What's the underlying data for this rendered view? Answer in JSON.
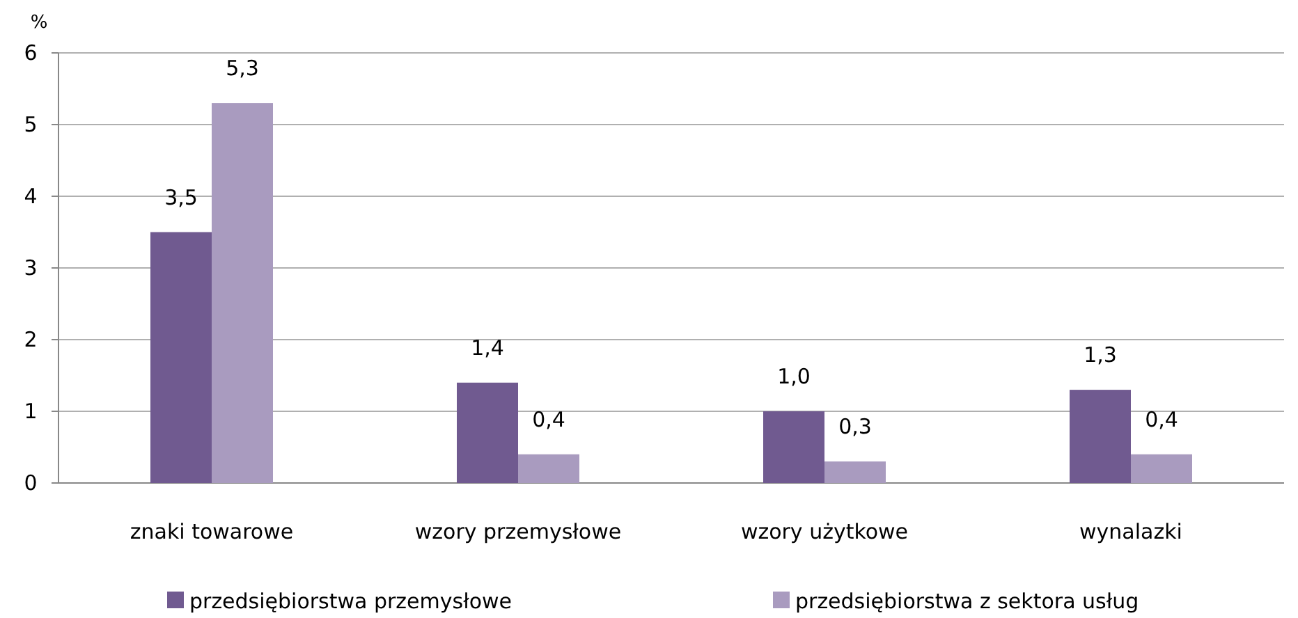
{
  "chart_data": {
    "type": "bar",
    "ylabel": "%",
    "categories": [
      "znaki towarowe",
      "wzory przemysłowe",
      "wzory użytkowe",
      "wynalazki"
    ],
    "series": [
      {
        "name": "przedsiębiorstwa przemysłowe",
        "color": "#705a90",
        "values": [
          3.5,
          1.4,
          1.0,
          1.3
        ],
        "value_labels": [
          "3,5",
          "1,4",
          "1,0",
          "1,3"
        ]
      },
      {
        "name": "przedsiębiorstwa z sektora usług",
        "color": "#a99bbf",
        "values": [
          5.3,
          0.4,
          0.3,
          0.4
        ],
        "value_labels": [
          "5,3",
          "0,4",
          "0,3",
          "0,4"
        ]
      }
    ],
    "ylim": [
      0,
      6
    ],
    "yticks": [
      0,
      1,
      2,
      3,
      4,
      5,
      6
    ],
    "grid": "y",
    "legend": "bottom"
  }
}
